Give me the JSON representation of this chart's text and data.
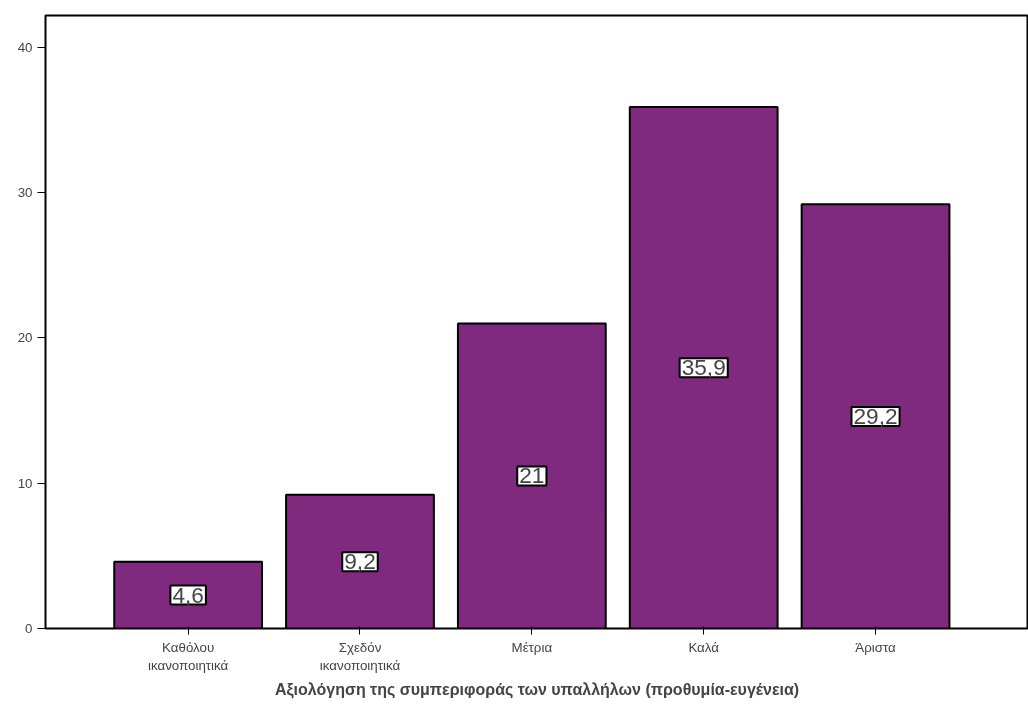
{
  "chart_data": {
    "type": "bar",
    "xlabel": "Αξιολόγηση της συμπεριφοράς των υπαλλήλων (προθυμία-ευγένεια)",
    "categories": [
      "Καθόλου\nικανοποιητικά",
      "Σχεδόν\nικανοποιητικά",
      "Μέτρια",
      "Καλά",
      "Άριστα"
    ],
    "values": [
      4.6,
      9.2,
      21,
      35.9,
      29.2
    ],
    "value_labels": [
      "4,6",
      "9,2",
      "21",
      "35,9",
      "29,2"
    ],
    "color": "#7f2a7f",
    "ylim": [
      0,
      42.2
    ],
    "yticks": [
      0,
      10,
      20,
      30,
      40
    ],
    "grid": false
  }
}
